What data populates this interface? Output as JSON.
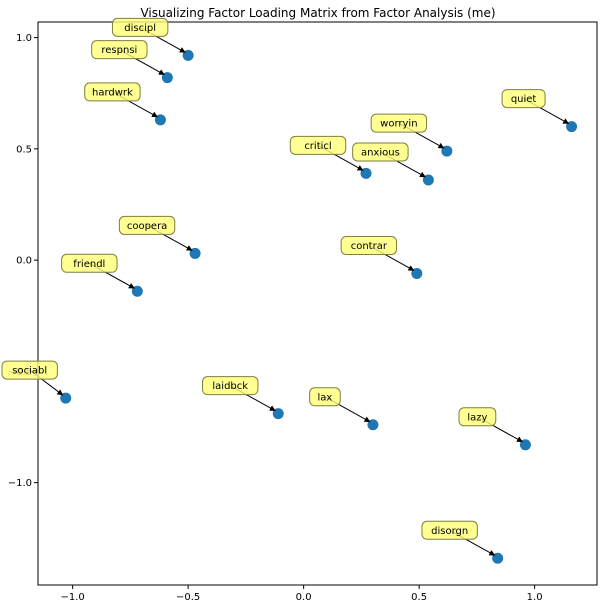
{
  "chart_data": {
    "type": "scatter",
    "title": "Visualizing Factor Loading Matrix from Factor Analysis (me)",
    "xlabel": "",
    "ylabel": "",
    "xlim": [
      -1.15,
      1.27
    ],
    "ylim": [
      -1.46,
      1.07
    ],
    "xticks": [
      -1.0,
      -0.5,
      0.0,
      0.5,
      1.0
    ],
    "xtick_labels": [
      "−1.0",
      "−0.5",
      "0.0",
      "0.5",
      "1.0"
    ],
    "yticks": [
      1.0,
      0.5,
      0.0,
      -0.5,
      -1.0
    ],
    "ytick_labels": [
      "1.0",
      "0.5",
      "0.0",
      "−0.5",
      "−1.0"
    ],
    "grid": false,
    "colors": {
      "marker": "#1f77b4",
      "label_box_fill": "#ffff77",
      "label_box_stroke": "#7f7f3f",
      "arrow": "#000000"
    },
    "points": [
      {
        "label": "discipl",
        "x": -0.5,
        "y": 0.92
      },
      {
        "label": "respnsi",
        "x": -0.59,
        "y": 0.82
      },
      {
        "label": "hardwrk",
        "x": -0.62,
        "y": 0.63
      },
      {
        "label": "quiet",
        "x": 1.16,
        "y": 0.6
      },
      {
        "label": "worryin",
        "x": 0.62,
        "y": 0.49
      },
      {
        "label": "criticl",
        "x": 0.27,
        "y": 0.39
      },
      {
        "label": "anxious",
        "x": 0.54,
        "y": 0.36
      },
      {
        "label": "coopera",
        "x": -0.47,
        "y": 0.03
      },
      {
        "label": "contrar",
        "x": 0.49,
        "y": -0.06
      },
      {
        "label": "friendl",
        "x": -0.72,
        "y": -0.14
      },
      {
        "label": "sociabl",
        "x": -1.03,
        "y": -0.62
      },
      {
        "label": "laidbck",
        "x": -0.11,
        "y": -0.69
      },
      {
        "label": "lax",
        "x": 0.3,
        "y": -0.74
      },
      {
        "label": "lazy",
        "x": 0.96,
        "y": -0.83
      },
      {
        "label": "disorgn",
        "x": 0.84,
        "y": -1.34
      }
    ]
  }
}
